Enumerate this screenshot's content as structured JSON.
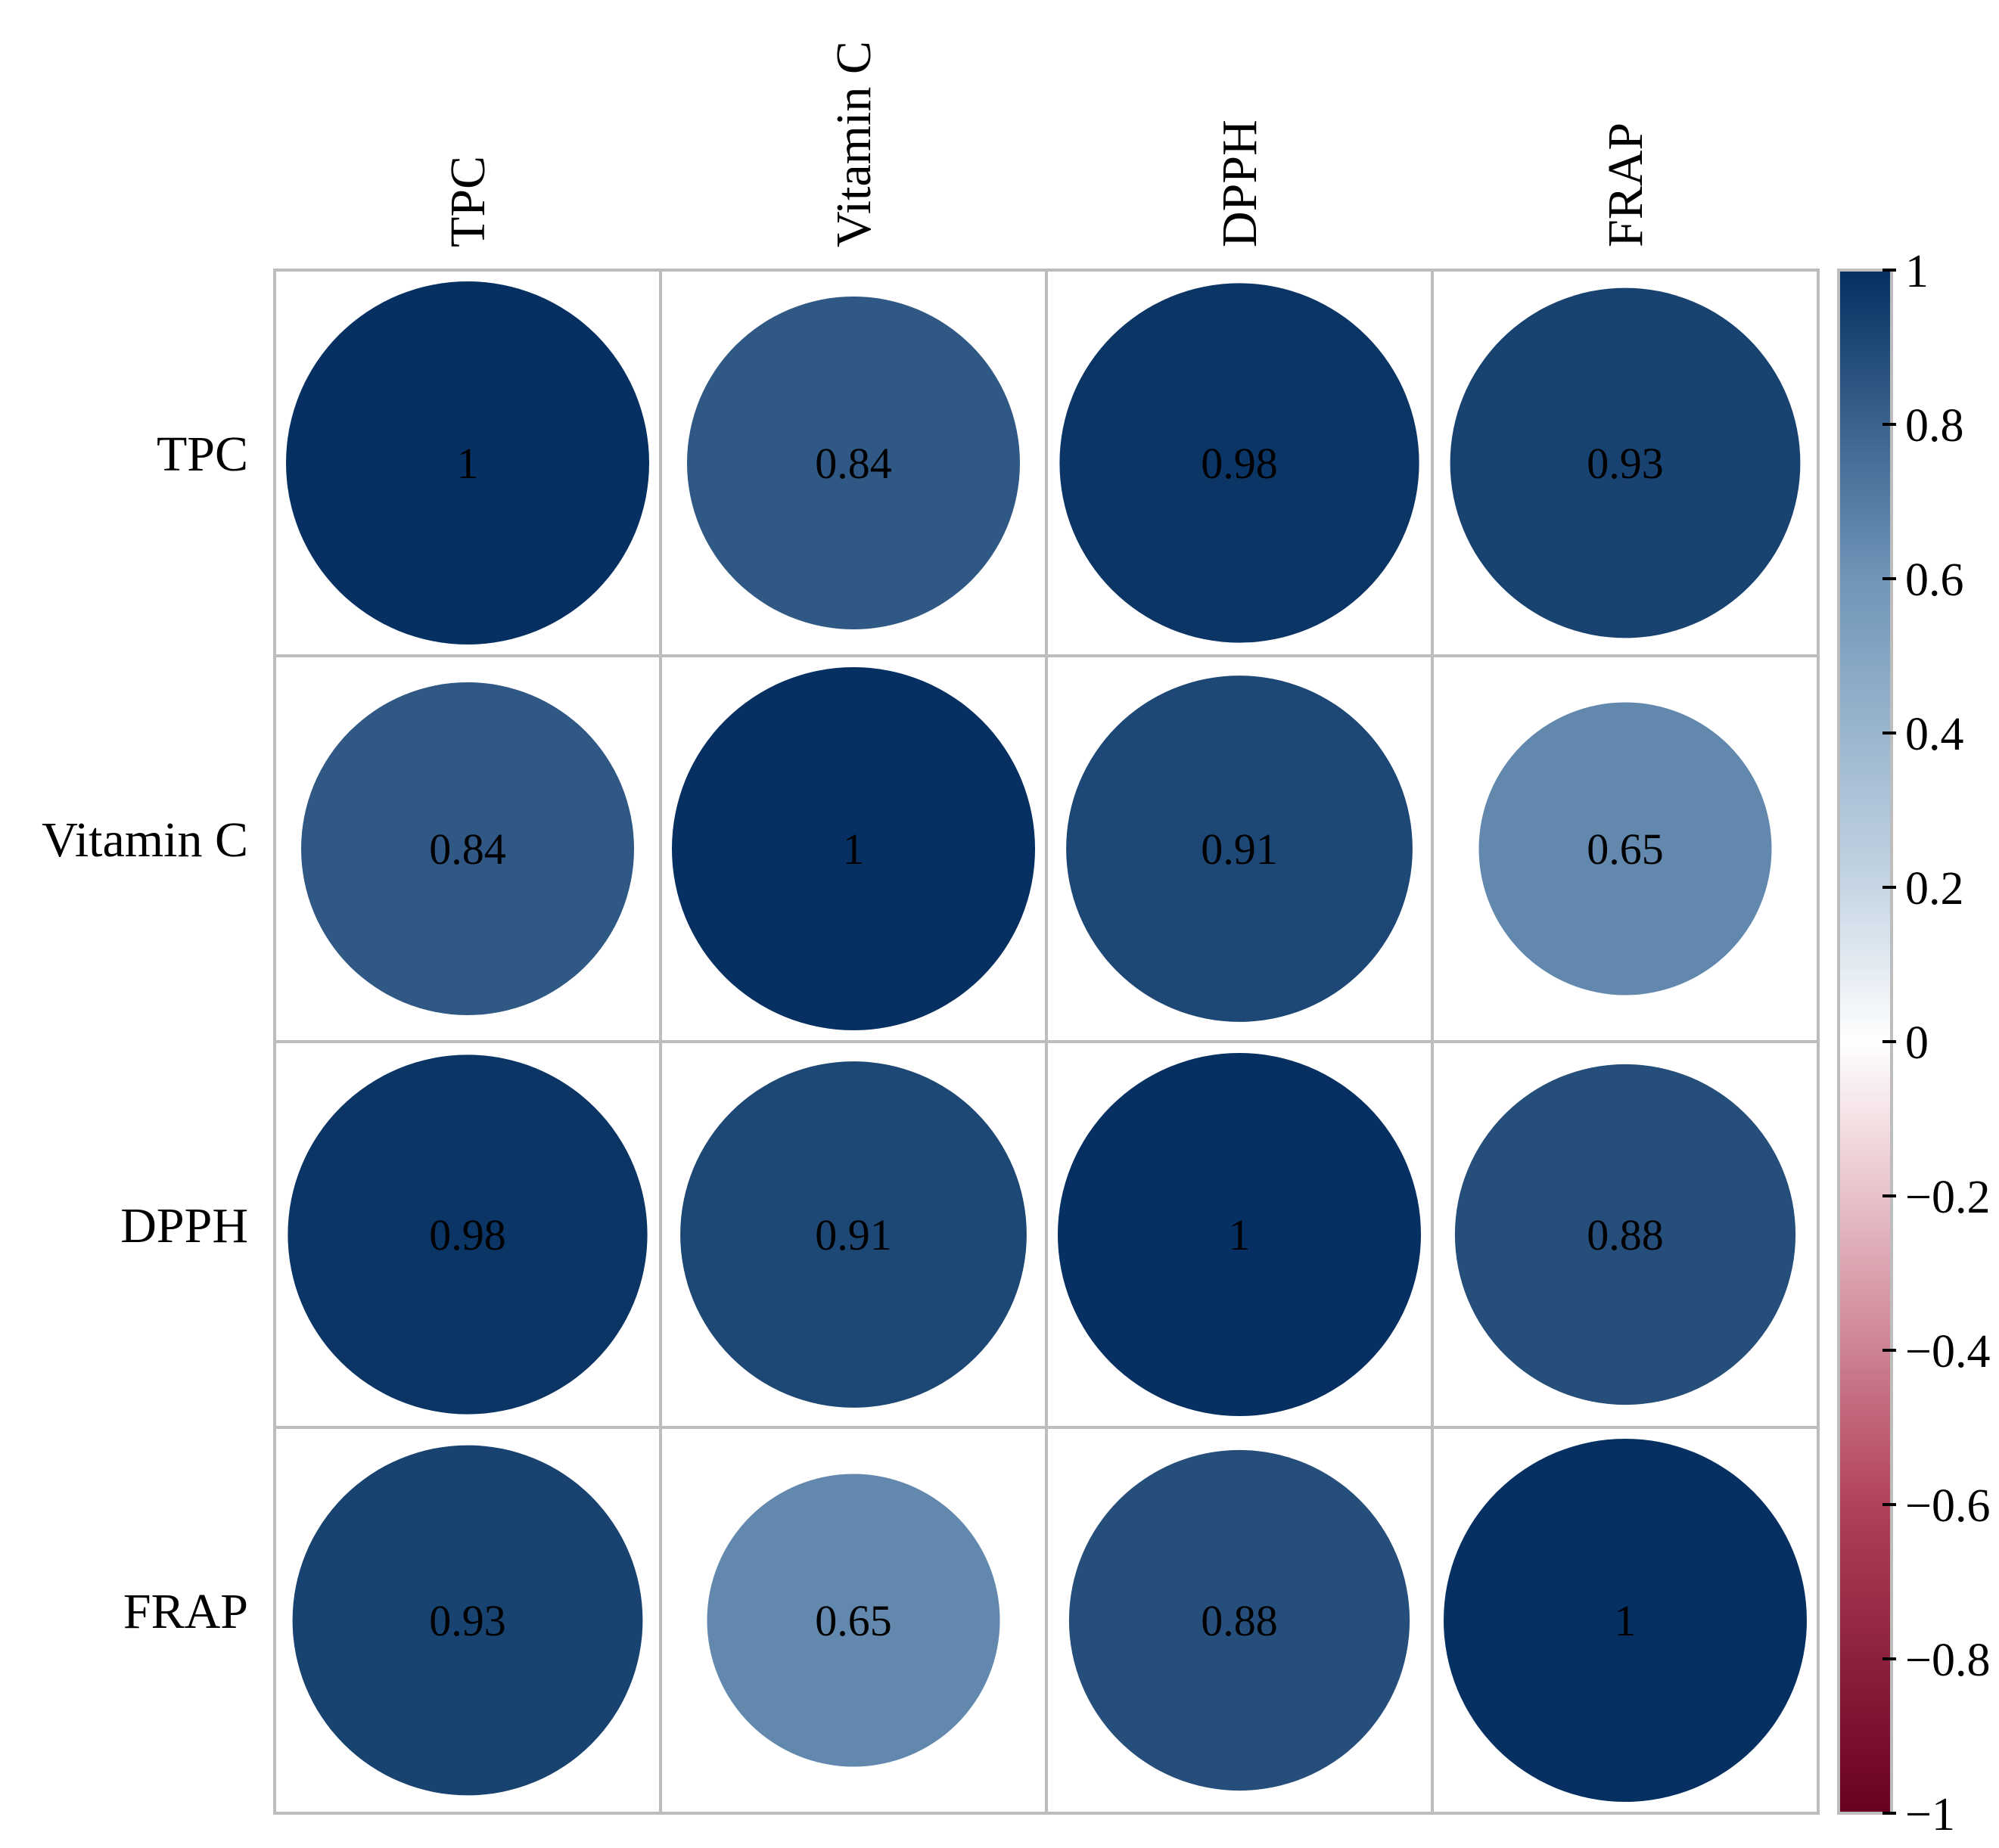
{
  "chart_data": {
    "type": "heatmap",
    "variant": "correlation-circles",
    "title": "",
    "row_labels": [
      "TPC",
      "Vitamin C",
      "DPPH",
      "FRAP"
    ],
    "column_labels": [
      "TPC",
      "Vitamin C",
      "DPPH",
      "FRAP"
    ],
    "matrix": [
      [
        1,
        0.84,
        0.98,
        0.93
      ],
      [
        0.84,
        1,
        0.91,
        0.65
      ],
      [
        0.98,
        0.91,
        1,
        0.88
      ],
      [
        0.93,
        0.65,
        0.88,
        1
      ]
    ],
    "cell_labels": [
      [
        "1",
        "0.84",
        "0.98",
        "0.93"
      ],
      [
        "0.84",
        "1",
        "0.91",
        "0.65"
      ],
      [
        "0.98",
        "0.91",
        "1",
        "0.88"
      ],
      [
        "0.93",
        "0.65",
        "0.88",
        "1"
      ]
    ],
    "colorbar": {
      "range": [
        -1,
        1
      ],
      "ticks": [
        1,
        0.8,
        0.6,
        0.4,
        0.2,
        0,
        -0.2,
        -0.4,
        -0.6,
        -0.8,
        -1
      ],
      "tick_labels": [
        "1",
        "0.8",
        "0.6",
        "0.4",
        "0.2",
        "0",
        "−0.2",
        "−0.4",
        "−0.6",
        "−0.8",
        "−1"
      ],
      "colors": {
        "neg1": "#67001f",
        "neg06": "#b2415a",
        "neg02": "#e8c2ca",
        "zero": "#ffffff",
        "pos02": "#c6d6e4",
        "pos06": "#6f95b8",
        "pos1": "#053061"
      }
    },
    "grid_color": "#bdbdbd"
  }
}
